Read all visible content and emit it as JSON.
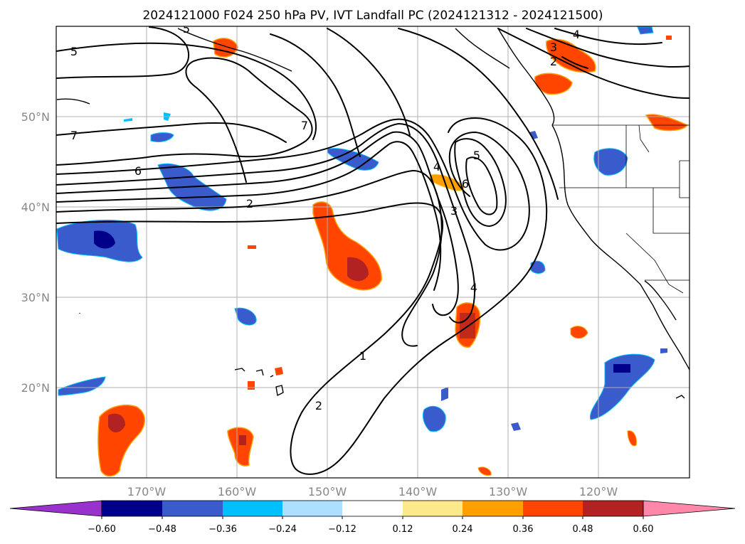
{
  "title": "2024121000 F024 250 hPa PV, IVT Landfall PC (2024121312 - 2024121500)",
  "map": {
    "projection": "PlateCarree",
    "lon_range": [
      -180,
      -110
    ],
    "lat_range": [
      10,
      60
    ],
    "lon_ticks": [
      {
        "value": -170,
        "label": "170°W"
      },
      {
        "value": -160,
        "label": "160°W"
      },
      {
        "value": -150,
        "label": "150°W"
      },
      {
        "value": -140,
        "label": "140°W"
      },
      {
        "value": -130,
        "label": "130°W"
      },
      {
        "value": -120,
        "label": "120°W"
      }
    ],
    "lat_ticks": [
      {
        "value": 50,
        "label": "50°N"
      },
      {
        "value": 40,
        "label": "40°N"
      },
      {
        "value": 30,
        "label": "30°N"
      },
      {
        "value": 20,
        "label": "20°N"
      }
    ],
    "grid": true
  },
  "colorbar": {
    "extend": "both",
    "colors": [
      "#9932cc",
      "#00008b",
      "#3a5bcc",
      "#00bfff",
      "#addfff",
      "#ffffff",
      "#fce98c",
      "#ff9f00",
      "#ff4500",
      "#b22222",
      "#ff88aa"
    ],
    "ticks": [
      "−0.60",
      "−0.48",
      "−0.36",
      "−0.24",
      "−0.12",
      "0.12",
      "0.24",
      "0.36",
      "0.48",
      "0.60"
    ]
  },
  "contour_labels": [
    "5",
    "7",
    "6",
    "2",
    "7",
    "5",
    "4",
    "3",
    "4",
    "6",
    "3",
    "4",
    "1",
    "2"
  ]
}
